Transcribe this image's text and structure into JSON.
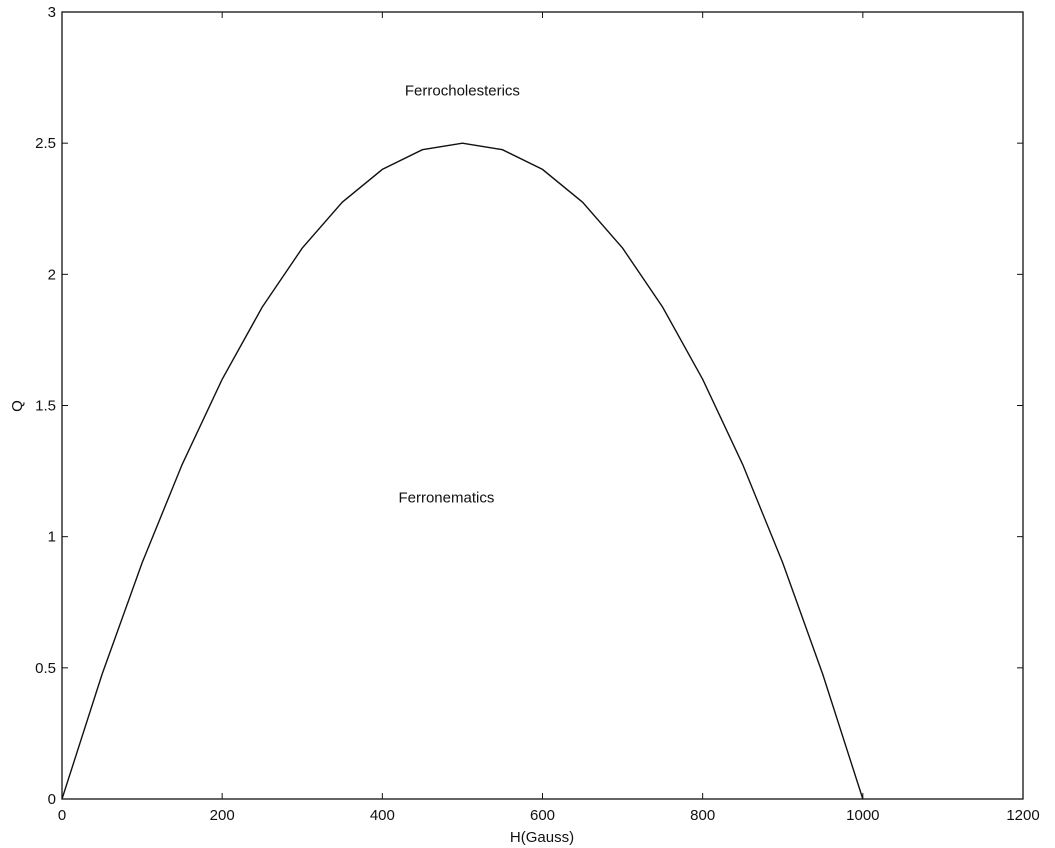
{
  "chart_data": {
    "type": "line",
    "title": "",
    "xlabel": "H(Gauss)",
    "ylabel": "Q",
    "xlim": [
      0,
      1200
    ],
    "ylim": [
      0,
      3
    ],
    "xticks": [
      0,
      200,
      400,
      600,
      800,
      1000,
      1200
    ],
    "yticks": [
      0,
      0.5,
      1,
      1.5,
      2,
      2.5,
      3
    ],
    "xtick_labels": [
      "0",
      "200",
      "400",
      "600",
      "800",
      "1000",
      "1200"
    ],
    "ytick_labels": [
      "0",
      "0.5",
      "1",
      "1.5",
      "2",
      "2.5",
      "3"
    ],
    "grid": false,
    "legend": "none",
    "line_color": "#111111",
    "series": [
      {
        "x": [
          0,
          50,
          100,
          150,
          200,
          250,
          300,
          350,
          400,
          450,
          500,
          550,
          600,
          650,
          700,
          750,
          800,
          850,
          900,
          950,
          1000
        ],
        "values": [
          0,
          0.475,
          0.9,
          1.275,
          1.6,
          1.875,
          2.1,
          2.275,
          2.4,
          2.475,
          2.5,
          2.475,
          2.4,
          2.275,
          2.1,
          1.875,
          1.6,
          1.275,
          0.9,
          0.475,
          0
        ]
      }
    ],
    "annotations": [
      {
        "text": "Ferrocholesterics",
        "x": 500,
        "y": 2.7
      },
      {
        "text": "Ferronematics",
        "x": 480,
        "y": 1.15
      }
    ]
  }
}
